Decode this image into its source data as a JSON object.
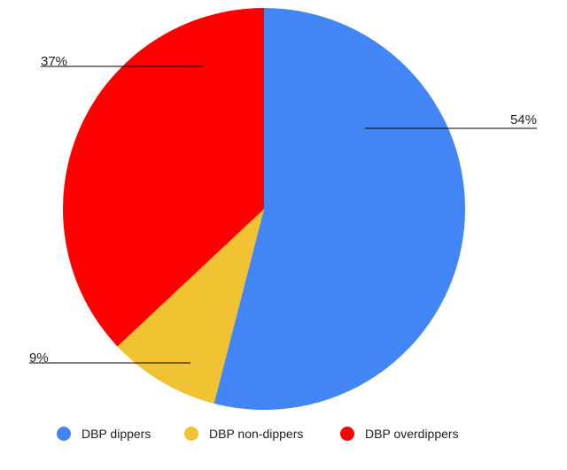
{
  "chart_data": {
    "type": "pie",
    "title": "",
    "categories": [
      "DBP dippers",
      "DBP non-dippers",
      "DBP overdippers"
    ],
    "values": [
      54,
      9,
      37
    ],
    "value_labels": [
      "54%",
      "9%",
      "37%"
    ],
    "colors": [
      "#4285F4",
      "#F1C232",
      "#FF0000"
    ],
    "start_angle_deg": 0,
    "direction": "clockwise",
    "legend_position": "bottom",
    "label_style": "outside-with-leader-lines"
  }
}
